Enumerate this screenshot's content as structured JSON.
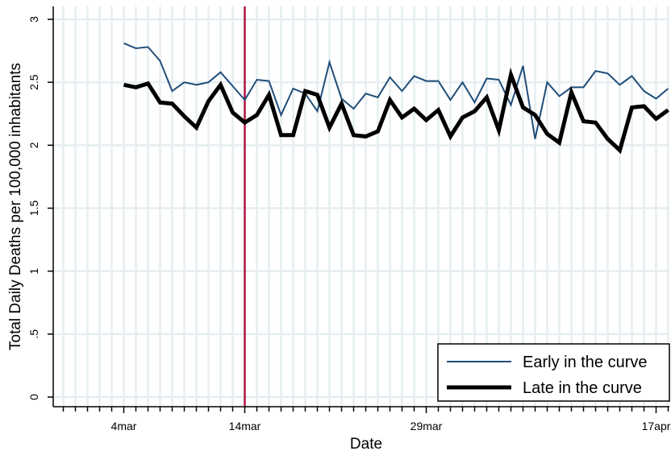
{
  "chart_data": {
    "type": "line",
    "ylabel": "Total Daily Deaths per 100,000 inhabitants",
    "xlabel": "Date",
    "ylim": [
      0,
      3
    ],
    "y_ticks": [
      0,
      0.5,
      1,
      1.5,
      2,
      2.5,
      3
    ],
    "y_tick_labels": [
      "0",
      ".5",
      "1",
      "1.5",
      "2",
      "2.5",
      "3"
    ],
    "x_range": [
      "2020-02-28",
      "2020-04-19"
    ],
    "x_tick_labels": [
      {
        "date": "2020-03-04",
        "label": "4mar"
      },
      {
        "date": "2020-03-14",
        "label": "14mar"
      },
      {
        "date": "2020-03-29",
        "label": "29mar"
      },
      {
        "date": "2020-04-17",
        "label": "17apr"
      }
    ],
    "grid": true,
    "reference_line": {
      "date": "2020-03-14",
      "color": "#b0173f"
    },
    "legend_position": "bottom-right",
    "series": [
      {
        "name": "Early in the curve",
        "color": "#1f4e79",
        "start_date": "2020-03-04",
        "values": [
          2.81,
          2.77,
          2.78,
          2.67,
          2.43,
          2.5,
          2.48,
          2.5,
          2.58,
          2.47,
          2.36,
          2.52,
          2.51,
          2.24,
          2.45,
          2.41,
          2.27,
          2.66,
          2.37,
          2.29,
          2.41,
          2.38,
          2.54,
          2.43,
          2.55,
          2.51,
          2.51,
          2.36,
          2.5,
          2.34,
          2.53,
          2.52,
          2.32,
          2.63,
          2.05,
          2.5,
          2.39,
          2.46,
          2.46,
          2.59,
          2.57,
          2.48,
          2.55,
          2.43,
          2.37,
          2.45
        ]
      },
      {
        "name": "Late in the curve",
        "color": "#000000",
        "start_date": "2020-03-04",
        "values": [
          2.48,
          2.46,
          2.49,
          2.34,
          2.33,
          2.23,
          2.14,
          2.35,
          2.48,
          2.26,
          2.18,
          2.24,
          2.4,
          2.08,
          2.08,
          2.43,
          2.4,
          2.14,
          2.33,
          2.08,
          2.07,
          2.11,
          2.36,
          2.22,
          2.29,
          2.2,
          2.28,
          2.07,
          2.22,
          2.27,
          2.38,
          2.12,
          2.56,
          2.3,
          2.24,
          2.09,
          2.02,
          2.42,
          2.19,
          2.18,
          2.05,
          1.96,
          2.3,
          2.31,
          2.21,
          2.28
        ]
      }
    ]
  }
}
